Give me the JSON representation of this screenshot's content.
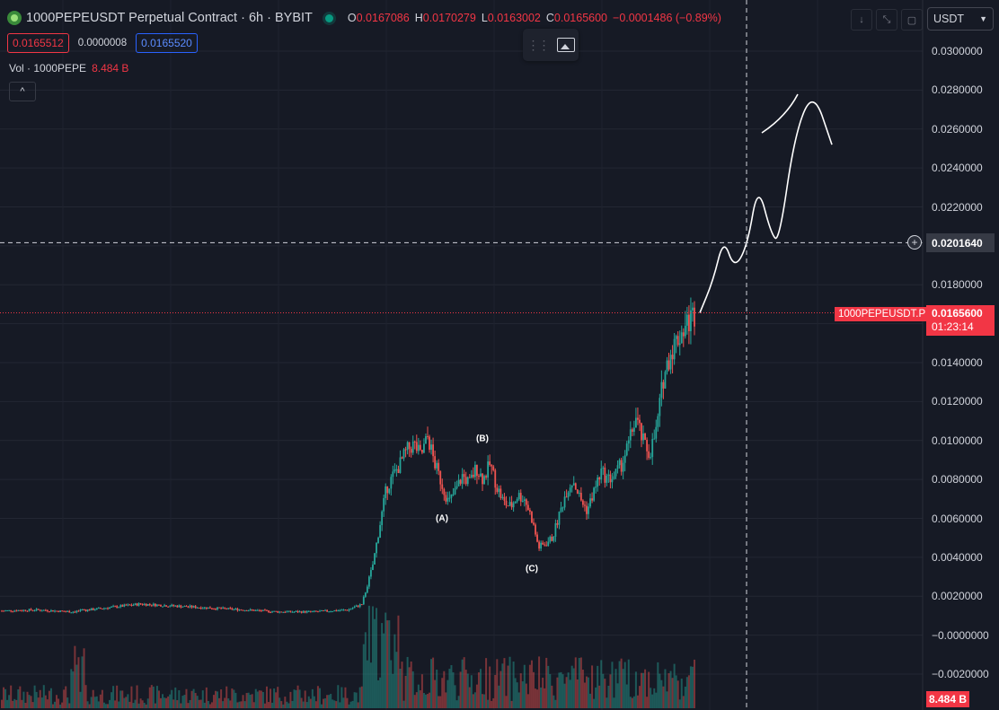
{
  "header": {
    "title": "1000PEPEUSDT Perpetual Contract · 6h · BYBIT",
    "ohlc": [
      {
        "k": "O",
        "v": "0.0167086"
      },
      {
        "k": "H",
        "v": "0.0170279"
      },
      {
        "k": "L",
        "v": "0.0163002"
      },
      {
        "k": "C",
        "v": "0.0165600"
      }
    ],
    "change": "−0.0001486 (−0.89%)",
    "bid": "0.0165512",
    "spread": "0.0000008",
    "ask": "0.0165520",
    "vol_label": "Vol · 1000PEPE",
    "vol_value": "8.484 B"
  },
  "toolbar": {
    "currency": "USDT",
    "collapse_icon": "chevron-up-icon",
    "image_icon": "image-icon",
    "grip_icon": "drag-handle-icon",
    "down_icon": "arrow-down-icon",
    "fullscreen_icon": "fullscreen-icon",
    "layout_icon": "layout-icon"
  },
  "axis": {
    "labels": [
      "0.0300000",
      "0.0280000",
      "0.0260000",
      "0.0240000",
      "0.0220000",
      "0.0200000",
      "0.0180000",
      "0.0160000",
      "0.0140000",
      "0.0120000",
      "0.0100000",
      "0.0080000",
      "0.0060000",
      "0.0040000",
      "0.0020000",
      "−0.0000000",
      "−0.0020000"
    ],
    "values": [
      0.03,
      0.028,
      0.026,
      0.024,
      0.022,
      0.02,
      0.018,
      0.016,
      0.014,
      0.012,
      0.01,
      0.008,
      0.006,
      0.004,
      0.002,
      0.0,
      -0.002
    ]
  },
  "crosshair": {
    "label": "0.0201640",
    "value": 0.020164
  },
  "last_price": {
    "symbol": "1000PEPEUSDT.P",
    "price": "0.0165600",
    "value": 0.01656,
    "countdown": "01:23:14"
  },
  "volume_tag": "8.484 B",
  "waves": [
    {
      "label": "(A)",
      "price": 0.006
    },
    {
      "label": "(B)",
      "price": 0.0101
    },
    {
      "label": "(C)",
      "price": 0.0034
    }
  ],
  "chart_data": {
    "type": "candlestick",
    "timeframe": "6h",
    "ylim": [
      -0.0024,
      0.0311
    ],
    "close_path": [
      [
        0,
        0.00125
      ],
      [
        0.05,
        0.0013
      ],
      [
        0.1,
        0.0012
      ],
      [
        0.15,
        0.0014
      ],
      [
        0.2,
        0.0016
      ],
      [
        0.25,
        0.0015
      ],
      [
        0.3,
        0.0014
      ],
      [
        0.35,
        0.0013
      ],
      [
        0.4,
        0.0012
      ],
      [
        0.45,
        0.0012
      ],
      [
        0.5,
        0.0013
      ],
      [
        0.52,
        0.0016
      ],
      [
        0.535,
        0.0035
      ],
      [
        0.545,
        0.0055
      ],
      [
        0.555,
        0.0075
      ],
      [
        0.565,
        0.0082
      ],
      [
        0.575,
        0.0088
      ],
      [
        0.585,
        0.0095
      ],
      [
        0.595,
        0.0098
      ],
      [
        0.605,
        0.0092
      ],
      [
        0.615,
        0.0102
      ],
      [
        0.625,
        0.0088
      ],
      [
        0.635,
        0.0078
      ],
      [
        0.645,
        0.0068
      ],
      [
        0.655,
        0.0074
      ],
      [
        0.665,
        0.0082
      ],
      [
        0.675,
        0.0078
      ],
      [
        0.685,
        0.0086
      ],
      [
        0.695,
        0.008
      ],
      [
        0.705,
        0.0088
      ],
      [
        0.715,
        0.0076
      ],
      [
        0.725,
        0.0068
      ],
      [
        0.735,
        0.0066
      ],
      [
        0.745,
        0.0072
      ],
      [
        0.755,
        0.007
      ],
      [
        0.765,
        0.006
      ],
      [
        0.775,
        0.0045
      ],
      [
        0.785,
        0.0047
      ],
      [
        0.795,
        0.005
      ],
      [
        0.805,
        0.0062
      ],
      [
        0.815,
        0.0074
      ],
      [
        0.825,
        0.008
      ],
      [
        0.835,
        0.007
      ],
      [
        0.845,
        0.0064
      ],
      [
        0.855,
        0.0074
      ],
      [
        0.865,
        0.0084
      ],
      [
        0.875,
        0.008
      ],
      [
        0.885,
        0.0082
      ],
      [
        0.895,
        0.0088
      ],
      [
        0.905,
        0.0098
      ],
      [
        0.915,
        0.0112
      ],
      [
        0.925,
        0.01
      ],
      [
        0.935,
        0.0093
      ],
      [
        0.945,
        0.0105
      ],
      [
        0.955,
        0.0132
      ],
      [
        0.965,
        0.0145
      ],
      [
        0.975,
        0.0152
      ],
      [
        0.985,
        0.0158
      ],
      [
        1.0,
        0.01656
      ]
    ],
    "projection": [
      [
        0,
        0.01656
      ],
      [
        0.1,
        0.0182
      ],
      [
        0.18,
        0.0204
      ],
      [
        0.26,
        0.0188
      ],
      [
        0.36,
        0.02
      ],
      [
        0.44,
        0.0232
      ],
      [
        0.54,
        0.0206
      ],
      [
        0.6,
        0.0202
      ],
      [
        0.72,
        0.0258
      ],
      [
        0.86,
        0.028
      ],
      [
        1.0,
        0.0252
      ]
    ]
  }
}
